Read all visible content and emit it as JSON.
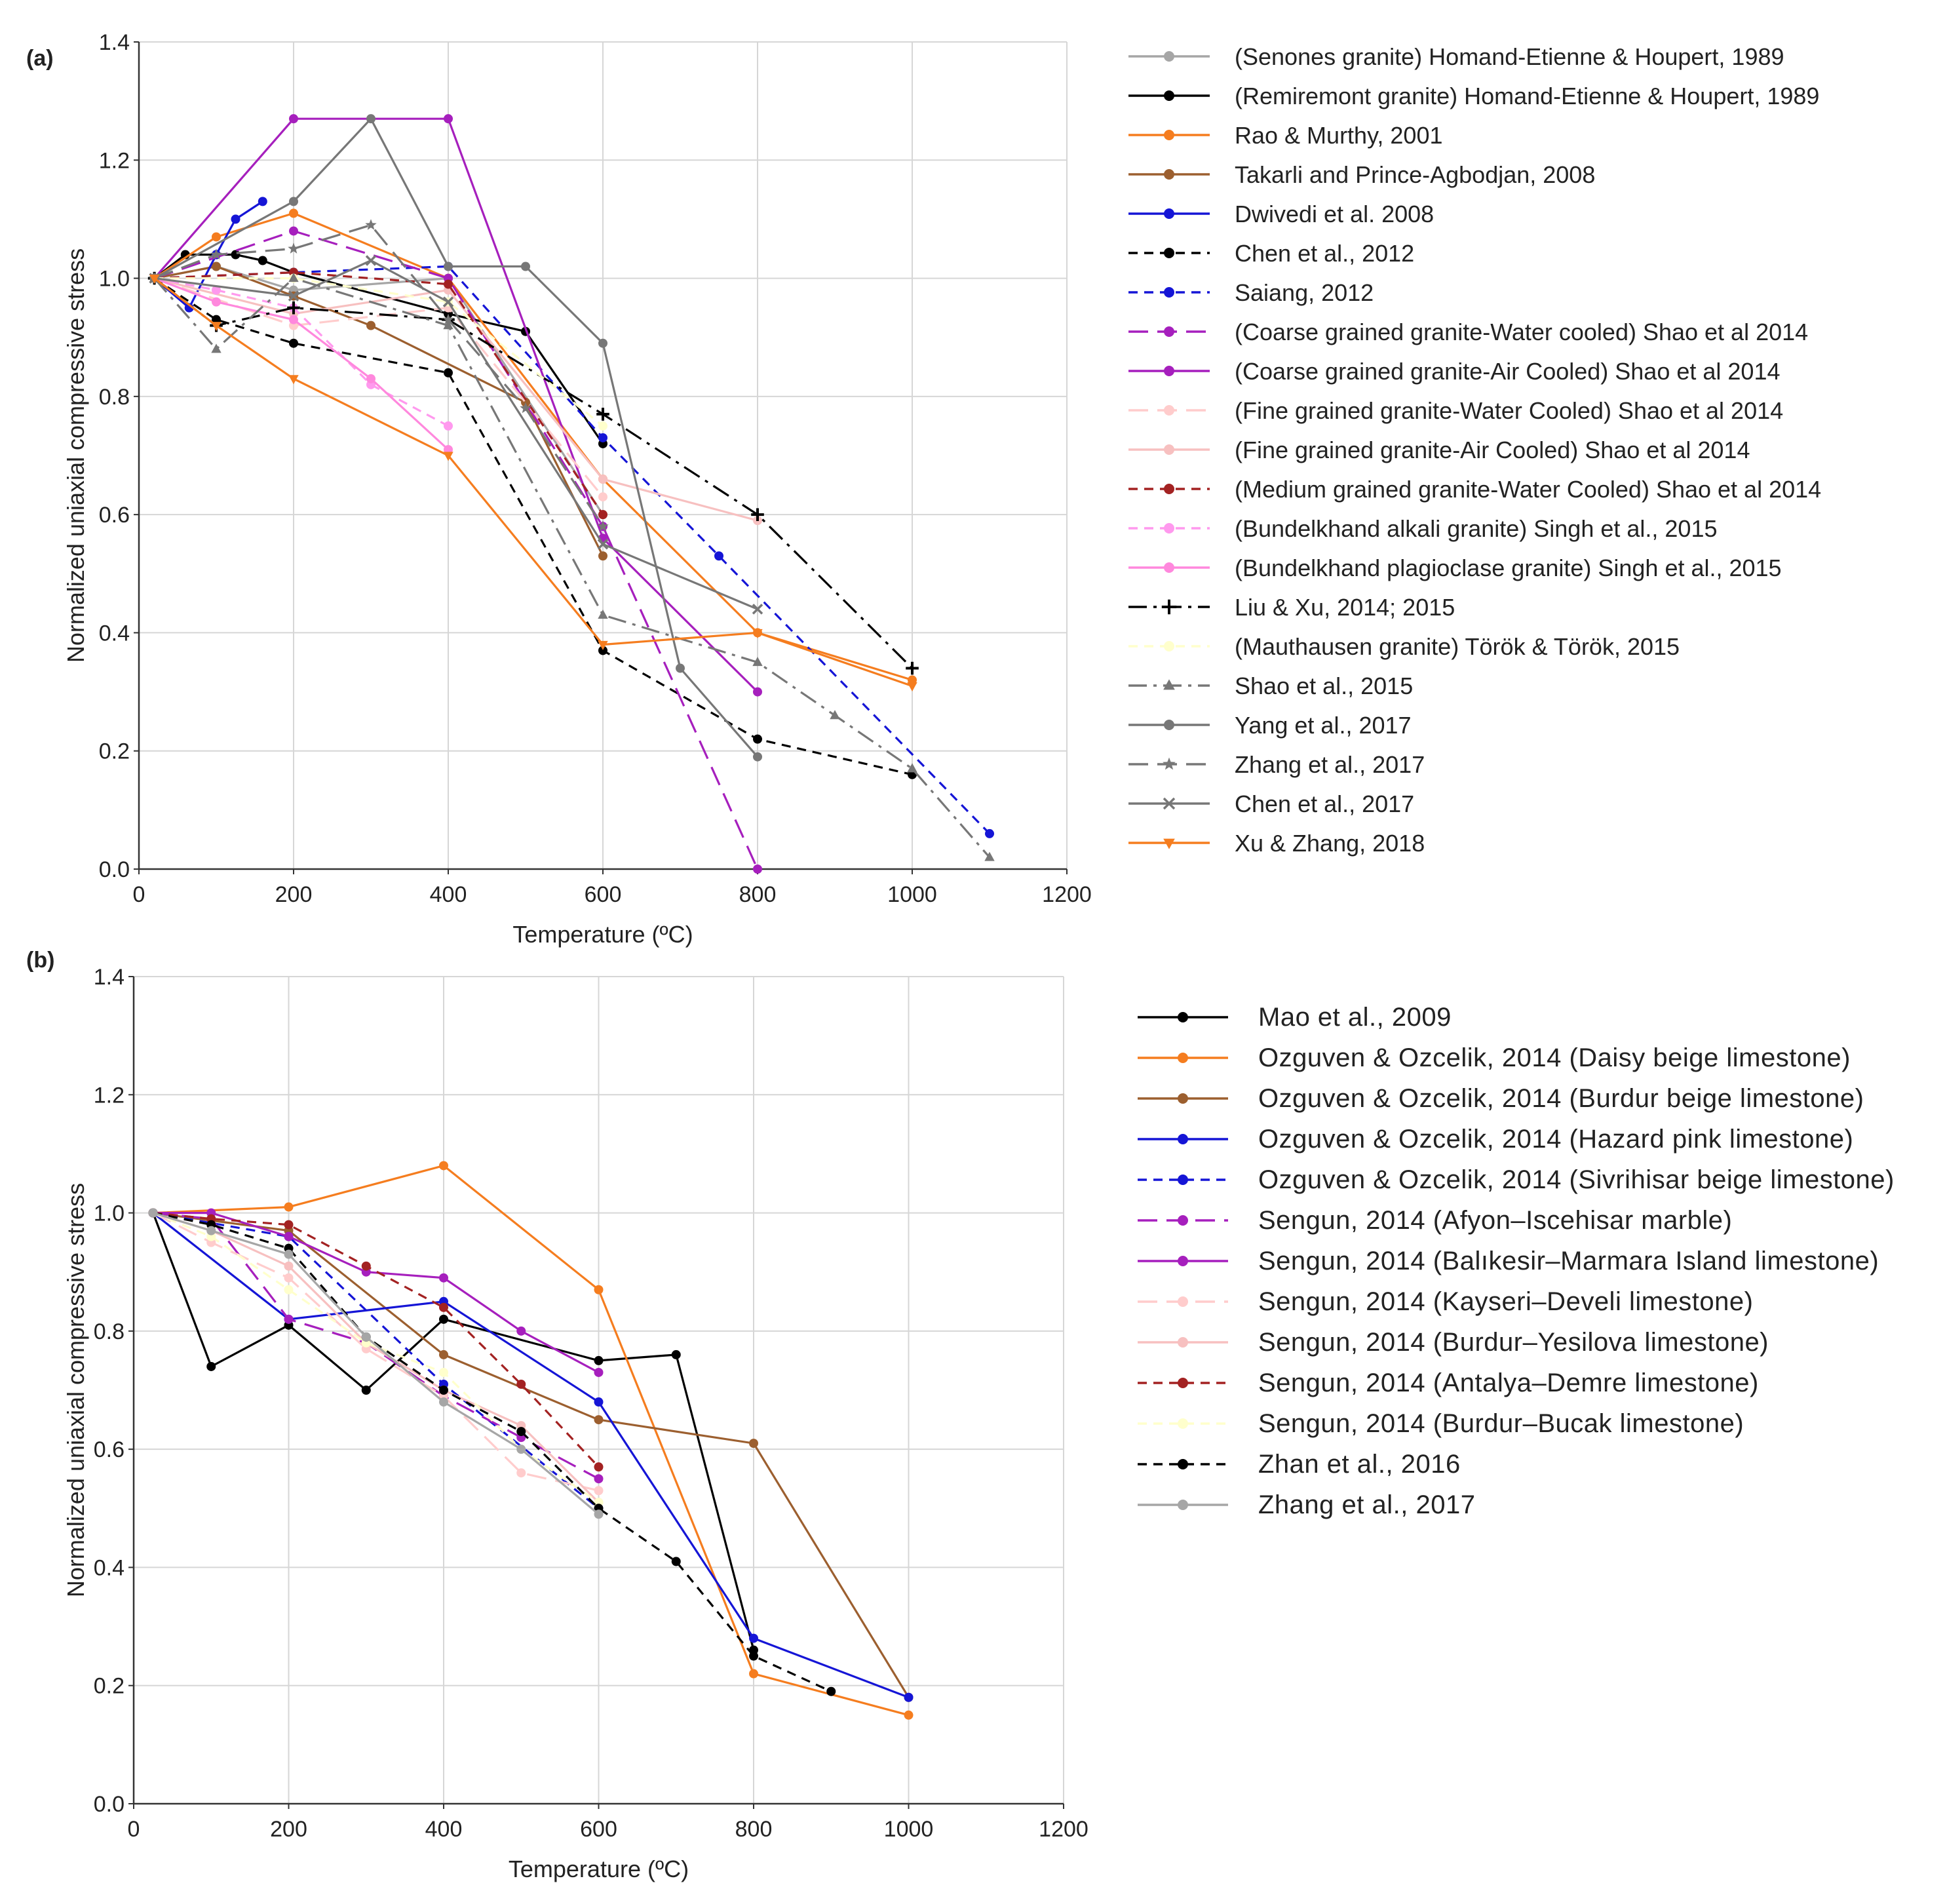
{
  "figure": {
    "background": "#ffffff",
    "grid_color": "#d6d6d6",
    "axis_color": "#333333"
  },
  "chart_data": [
    {
      "id": "a",
      "panel_label": "(a)",
      "type": "line",
      "title": "",
      "xlabel": "Temperature (ºC)",
      "ylabel": "Normalized uniaxial compressive stress",
      "xlim": [
        0,
        1200
      ],
      "ylim": [
        0,
        1.4
      ],
      "xticks": [
        0,
        200,
        400,
        600,
        800,
        1000,
        1200
      ],
      "yticks": [
        0.0,
        0.2,
        0.4,
        0.6,
        0.8,
        1.0,
        1.2,
        1.4
      ],
      "ytick_labels": [
        "0.0",
        "0.2",
        "0.4",
        "0.6",
        "0.8",
        "1.0",
        "1.2",
        "1.4"
      ],
      "grid": true,
      "legend": "right",
      "series": [
        {
          "name": "(Senones granite) Homand-Etienne & Houpert, 1989",
          "color": "#a6a6a6",
          "dash": "solid",
          "marker": "circle",
          "x": [
            20,
            100,
            200,
            400,
            600
          ],
          "y": [
            1.0,
            1.02,
            0.98,
            1.0,
            0.6
          ]
        },
        {
          "name": "(Remiremont granite) Homand-Etienne & Houpert, 1989",
          "color": "#000000",
          "dash": "solid",
          "marker": "circle",
          "x": [
            20,
            60,
            100,
            125,
            160,
            200,
            400,
            500,
            600
          ],
          "y": [
            1.0,
            1.04,
            1.04,
            1.04,
            1.03,
            1.01,
            0.94,
            0.91,
            0.72
          ]
        },
        {
          "name": "Rao & Murthy, 2001",
          "color": "#f57d1f",
          "dash": "solid",
          "marker": "circle",
          "x": [
            20,
            100,
            200,
            400,
            600,
            800,
            1000
          ],
          "y": [
            1.0,
            1.07,
            1.11,
            1.0,
            0.66,
            0.4,
            0.32
          ]
        },
        {
          "name": "Takarli and Prince-Agbodjan, 2008",
          "color": "#9c5f2f",
          "dash": "solid",
          "marker": "circle",
          "x": [
            20,
            100,
            200,
            300,
            500,
            600
          ],
          "y": [
            1.0,
            1.02,
            0.97,
            0.92,
            0.79,
            0.53
          ]
        },
        {
          "name": "Dwivedi et al. 2008",
          "color": "#1515d6",
          "dash": "solid",
          "marker": "circle",
          "x": [
            20,
            65,
            100,
            125,
            160
          ],
          "y": [
            1.0,
            0.95,
            1.04,
            1.1,
            1.13
          ]
        },
        {
          "name": "Chen et al., 2012",
          "color": "#000000",
          "dash": "dash",
          "marker": "circle",
          "x": [
            20,
            100,
            200,
            400,
            600,
            800,
            1000
          ],
          "y": [
            1.0,
            0.93,
            0.89,
            0.84,
            0.37,
            0.22,
            0.16
          ]
        },
        {
          "name": "Saiang, 2012",
          "color": "#1515d6",
          "dash": "dash",
          "marker": "circle",
          "x": [
            20,
            200,
            400,
            600,
            750,
            1100
          ],
          "y": [
            1.0,
            1.01,
            1.02,
            0.73,
            0.53,
            0.06
          ]
        },
        {
          "name": "(Coarse grained granite-Water cooled) Shao et al 2014",
          "color": "#a61fbd",
          "dash": "longdash",
          "marker": "circle",
          "x": [
            20,
            200,
            400,
            600,
            800
          ],
          "y": [
            1.0,
            1.08,
            1.0,
            0.58,
            0.0
          ]
        },
        {
          "name": "(Coarse grained granite-Air Cooled) Shao et al 2014",
          "color": "#a61fbd",
          "dash": "solid",
          "marker": "circle",
          "x": [
            20,
            200,
            400,
            600,
            800
          ],
          "y": [
            1.0,
            1.27,
            1.27,
            0.56,
            0.3
          ]
        },
        {
          "name": "(Fine grained granite-Water Cooled) Shao et al 2014",
          "color": "#ffcccc",
          "dash": "longdash",
          "marker": "circle",
          "x": [
            20,
            200,
            400,
            600
          ],
          "y": [
            1.0,
            0.92,
            0.95,
            0.63
          ]
        },
        {
          "name": "(Fine grained granite-Air Cooled) Shao et al 2014",
          "color": "#f7c0c0",
          "dash": "solid",
          "marker": "circle",
          "x": [
            20,
            200,
            400,
            600,
            800
          ],
          "y": [
            1.0,
            0.94,
            0.98,
            0.66,
            0.59
          ]
        },
        {
          "name": "(Medium grained granite-Water Cooled) Shao et al 2014",
          "color": "#a32222",
          "dash": "dash",
          "marker": "circle",
          "x": [
            20,
            200,
            400,
            600
          ],
          "y": [
            1.0,
            1.01,
            0.99,
            0.6
          ]
        },
        {
          "name": "(Bundelkhand alkali granite) Singh et al., 2015",
          "color": "#ff99ee",
          "dash": "dash",
          "marker": "circle",
          "x": [
            20,
            100,
            200,
            300,
            400
          ],
          "y": [
            1.0,
            0.98,
            0.95,
            0.82,
            0.75
          ]
        },
        {
          "name": "(Bundelkhand plagioclase granite) Singh et al., 2015",
          "color": "#ff88dd",
          "dash": "solid",
          "marker": "circle",
          "x": [
            20,
            100,
            200,
            300,
            400
          ],
          "y": [
            1.0,
            0.96,
            0.93,
            0.83,
            0.71
          ]
        },
        {
          "name": "Liu & Xu, 2014; 2015",
          "color": "#000000",
          "dash": "dashdot",
          "marker": "plus",
          "x": [
            20,
            100,
            200,
            400,
            600,
            800,
            1000
          ],
          "y": [
            1.0,
            0.92,
            0.95,
            0.93,
            0.77,
            0.6,
            0.34
          ]
        },
        {
          "name": "(Mauthausen granite) Török & Török, 2015",
          "color": "#ffffcc",
          "dash": "dash",
          "marker": "circle",
          "x": [
            20,
            200,
            400,
            600
          ],
          "y": [
            1.0,
            1.0,
            0.96,
            0.75
          ]
        },
        {
          "name": "Shao et al., 2015",
          "color": "#777777",
          "dash": "dashdot",
          "marker": "triangle",
          "x": [
            20,
            100,
            200,
            400,
            600,
            800,
            900,
            1000,
            1100
          ],
          "y": [
            1.0,
            0.88,
            1.0,
            0.92,
            0.43,
            0.35,
            0.26,
            0.17,
            0.02
          ]
        },
        {
          "name": "Yang et al., 2017",
          "color": "#777777",
          "dash": "solid",
          "marker": "circle",
          "x": [
            20,
            200,
            300,
            400,
            500,
            600,
            700,
            800
          ],
          "y": [
            1.0,
            1.13,
            1.27,
            1.02,
            1.02,
            0.89,
            0.34,
            0.19
          ]
        },
        {
          "name": "Zhang et al., 2017",
          "color": "#777777",
          "dash": "longdash",
          "marker": "star",
          "x": [
            20,
            100,
            200,
            300,
            400,
            500,
            600
          ],
          "y": [
            1.0,
            1.04,
            1.05,
            1.09,
            0.93,
            0.78,
            0.58
          ]
        },
        {
          "name": "Chen et al., 2017",
          "color": "#777777",
          "dash": "solid",
          "marker": "x",
          "x": [
            20,
            200,
            300,
            400,
            600,
            800
          ],
          "y": [
            1.0,
            0.97,
            1.03,
            0.96,
            0.55,
            0.44
          ]
        },
        {
          "name": "Xu & Zhang, 2018",
          "color": "#f57d1f",
          "dash": "solid",
          "marker": "triangle-down",
          "x": [
            20,
            100,
            200,
            400,
            600,
            800,
            1000
          ],
          "y": [
            1.0,
            0.92,
            0.83,
            0.7,
            0.38,
            0.4,
            0.31
          ]
        }
      ]
    },
    {
      "id": "b",
      "panel_label": "(b)",
      "type": "line",
      "title": "",
      "xlabel": "Temperature (ºC)",
      "ylabel": "Normalized uniaxial compressive stress",
      "xlim": [
        0,
        1200
      ],
      "ylim": [
        0,
        1.4
      ],
      "xticks": [
        0,
        200,
        400,
        600,
        800,
        1000,
        1200
      ],
      "yticks": [
        0.0,
        0.2,
        0.4,
        0.6,
        0.8,
        1.0,
        1.2,
        1.4
      ],
      "ytick_labels": [
        "0.0",
        "0.2",
        "0.4",
        "0.6",
        "0.8",
        "1.0",
        "1.2",
        "1.4"
      ],
      "grid": true,
      "legend": "right",
      "series": [
        {
          "name": "Mao et al., 2009",
          "color": "#000000",
          "dash": "solid",
          "marker": "circle",
          "x": [
            25,
            100,
            200,
            300,
            400,
            600,
            700,
            800
          ],
          "y": [
            1.0,
            0.74,
            0.81,
            0.7,
            0.82,
            0.75,
            0.76,
            0.26
          ]
        },
        {
          "name": "Ozguven & Ozcelik, 2014 (Daisy beige limestone)",
          "color": "#f57d1f",
          "dash": "solid",
          "marker": "circle",
          "x": [
            25,
            200,
            400,
            600,
            800,
            1000
          ],
          "y": [
            1.0,
            1.01,
            1.08,
            0.87,
            0.22,
            0.15
          ]
        },
        {
          "name": "Ozguven & Ozcelik, 2014 (Burdur beige limestone)",
          "color": "#9c5f2f",
          "dash": "solid",
          "marker": "circle",
          "x": [
            25,
            200,
            400,
            600,
            800,
            1000
          ],
          "y": [
            1.0,
            0.97,
            0.76,
            0.65,
            0.61,
            0.18
          ]
        },
        {
          "name": "Ozguven & Ozcelik, 2014 (Hazard pink limestone)",
          "color": "#1515d6",
          "dash": "solid",
          "marker": "circle",
          "x": [
            25,
            200,
            400,
            600,
            800,
            1000
          ],
          "y": [
            1.0,
            0.82,
            0.85,
            0.68,
            0.28,
            0.18
          ]
        },
        {
          "name": "Ozguven & Ozcelik, 2014 (Sivrihisar beige limestone)",
          "color": "#1515d6",
          "dash": "dash",
          "marker": "circle",
          "x": [
            25,
            200,
            400,
            600
          ],
          "y": [
            1.0,
            0.96,
            0.71,
            0.5
          ]
        },
        {
          "name": "Sengun, 2014 (Afyon–Iscehisar marble)",
          "color": "#a61fbd",
          "dash": "longdash",
          "marker": "circle",
          "x": [
            25,
            100,
            200,
            300,
            400,
            500,
            600
          ],
          "y": [
            1.0,
            0.99,
            0.82,
            0.78,
            0.69,
            0.62,
            0.55
          ]
        },
        {
          "name": "Sengun, 2014 (Balıkesir–Marmara Island limestone)",
          "color": "#a61fbd",
          "dash": "solid",
          "marker": "circle",
          "x": [
            25,
            100,
            200,
            300,
            400,
            500,
            600
          ],
          "y": [
            1.0,
            1.0,
            0.96,
            0.9,
            0.89,
            0.8,
            0.73
          ]
        },
        {
          "name": "Sengun, 2014 (Kayseri–Develi limestone)",
          "color": "#ffcccc",
          "dash": "longdash",
          "marker": "circle",
          "x": [
            25,
            100,
            200,
            300,
            400,
            500,
            600
          ],
          "y": [
            1.0,
            0.95,
            0.89,
            0.77,
            0.69,
            0.56,
            0.53
          ]
        },
        {
          "name": "Sengun, 2014 (Burdur–Yesilova limestone)",
          "color": "#f7c0c0",
          "dash": "solid",
          "marker": "circle",
          "x": [
            25,
            100,
            200,
            300,
            400,
            500,
            600
          ],
          "y": [
            1.0,
            0.97,
            0.91,
            0.78,
            0.7,
            0.64,
            0.51
          ]
        },
        {
          "name": "Sengun, 2014 (Antalya–Demre limestone)",
          "color": "#a32222",
          "dash": "dash",
          "marker": "circle",
          "x": [
            25,
            100,
            200,
            300,
            400,
            500,
            600
          ],
          "y": [
            1.0,
            0.99,
            0.98,
            0.91,
            0.84,
            0.71,
            0.57
          ]
        },
        {
          "name": "Sengun, 2014 (Burdur–Bucak limestone)",
          "color": "#ffffcc",
          "dash": "dash",
          "marker": "circle",
          "x": [
            25,
            100,
            200,
            300,
            400,
            500,
            600
          ],
          "y": [
            1.0,
            0.96,
            0.87,
            0.78,
            0.73,
            0.6,
            0.51
          ]
        },
        {
          "name": "Zhan et al., 2016",
          "color": "#000000",
          "dash": "dash",
          "marker": "circle",
          "x": [
            25,
            100,
            200,
            300,
            400,
            500,
            600,
            700,
            800,
            900
          ],
          "y": [
            1.0,
            0.98,
            0.94,
            0.79,
            0.7,
            0.63,
            0.5,
            0.41,
            0.25,
            0.19
          ]
        },
        {
          "name": "Zhang et al., 2017",
          "color": "#a6a6a6",
          "dash": "solid",
          "marker": "circle",
          "x": [
            25,
            100,
            200,
            300,
            400,
            500,
            600
          ],
          "y": [
            1.0,
            0.97,
            0.93,
            0.79,
            0.68,
            0.6,
            0.49
          ]
        }
      ]
    }
  ]
}
